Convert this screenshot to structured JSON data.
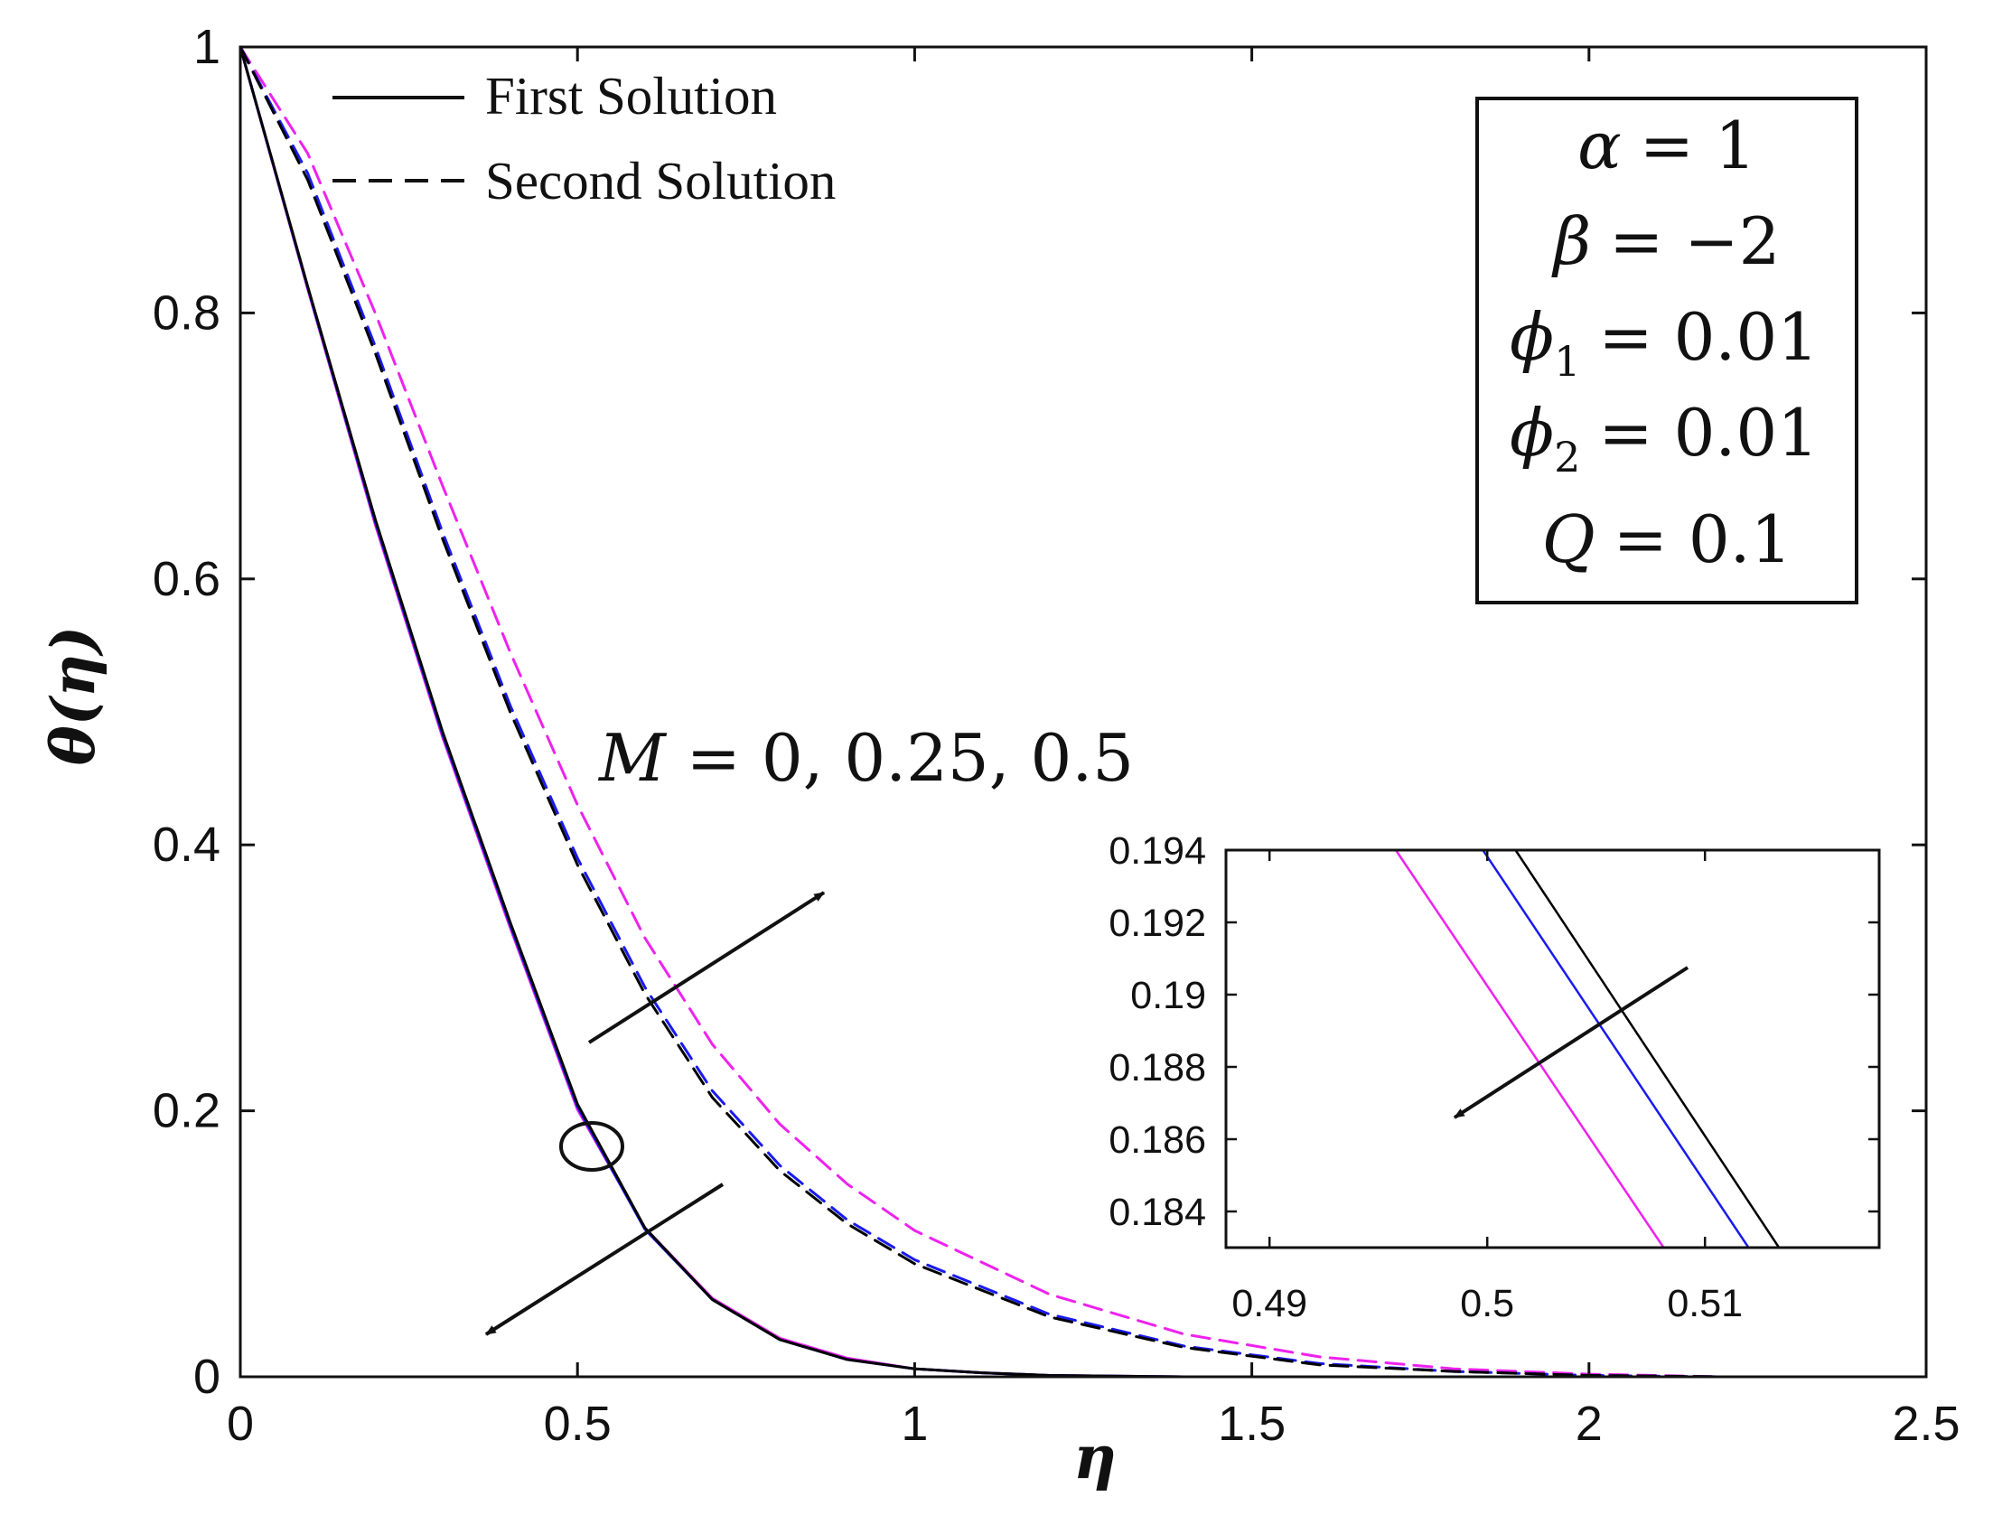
{
  "chart_data": [
    {
      "type": "line",
      "xlabel": "η",
      "ylabel": "θ(η)",
      "xlim": [
        0,
        2.5
      ],
      "ylim": [
        0,
        1
      ],
      "x_ticks": [
        "0",
        "0.5",
        "1",
        "1.5",
        "2",
        "2.5"
      ],
      "y_ticks": [
        "0",
        "0.2",
        "0.4",
        "0.6",
        "0.8",
        "1"
      ],
      "grid": false,
      "legend": {
        "placement": "top-left",
        "entries": [
          {
            "label": "First Solution",
            "style": "solid"
          },
          {
            "label": "Second Solution",
            "style": "dashed"
          }
        ]
      },
      "parameter_box": {
        "placement": "top-right",
        "lines": [
          {
            "symbol": "α",
            "subscript": "",
            "value": "= 1"
          },
          {
            "symbol": "β",
            "subscript": "",
            "value": "= −2"
          },
          {
            "symbol": "ϕ",
            "subscript": "1",
            "value": "= 0.01"
          },
          {
            "symbol": "ϕ",
            "subscript": "2",
            "value": "= 0.01"
          },
          {
            "symbol": "Q",
            "subscript": "",
            "value": "= 0.1"
          }
        ]
      },
      "annotation": {
        "symbol": "M",
        "text": " = 0, 0.25, 0.5"
      },
      "colors": {
        "M=0": "#000000",
        "M=0.25": "#1a1aee",
        "M=0.5": "#ee22ee",
        "axes": "#111111"
      },
      "series": [
        {
          "M": 0,
          "solution": "first",
          "color": "#000000",
          "style": "solid",
          "x": [
            0,
            0.1,
            0.2,
            0.3,
            0.4,
            0.5,
            0.6,
            0.7,
            0.8,
            0.9,
            1.0,
            1.1,
            1.2,
            1.4,
            1.6,
            2.0,
            2.5
          ],
          "y": [
            1.0,
            0.82,
            0.645,
            0.485,
            0.342,
            0.205,
            0.112,
            0.058,
            0.028,
            0.013,
            0.006,
            0.003,
            0.001,
            0.0,
            0.0,
            0.0,
            0.0
          ]
        },
        {
          "M": 0.25,
          "solution": "first",
          "color": "#1a1aee",
          "style": "solid",
          "x": [
            0,
            0.1,
            0.2,
            0.3,
            0.4,
            0.5,
            0.6,
            0.7,
            0.8,
            0.9,
            1.0,
            1.1,
            1.2,
            1.4,
            1.6,
            2.0,
            2.5
          ],
          "y": [
            1.0,
            0.819,
            0.643,
            0.483,
            0.34,
            0.203,
            0.111,
            0.058,
            0.028,
            0.013,
            0.006,
            0.003,
            0.001,
            0.0,
            0.0,
            0.0,
            0.0
          ]
        },
        {
          "M": 0.5,
          "solution": "first",
          "color": "#ee22ee",
          "style": "solid",
          "x": [
            0,
            0.1,
            0.2,
            0.3,
            0.4,
            0.5,
            0.6,
            0.7,
            0.8,
            0.9,
            1.0,
            1.1,
            1.2,
            1.4,
            1.6,
            2.0,
            2.5
          ],
          "y": [
            1.0,
            0.818,
            0.641,
            0.481,
            0.338,
            0.201,
            0.112,
            0.059,
            0.029,
            0.014,
            0.006,
            0.003,
            0.001,
            0.0,
            0.0,
            0.0,
            0.0
          ]
        },
        {
          "M": 0,
          "solution": "second",
          "color": "#000000",
          "style": "dashed",
          "x": [
            0,
            0.1,
            0.2,
            0.3,
            0.4,
            0.5,
            0.6,
            0.7,
            0.8,
            0.9,
            1.0,
            1.2,
            1.4,
            1.6,
            1.8,
            2.0,
            2.2,
            2.5
          ],
          "y": [
            1.0,
            0.9,
            0.77,
            0.63,
            0.5,
            0.385,
            0.288,
            0.21,
            0.155,
            0.115,
            0.085,
            0.045,
            0.022,
            0.009,
            0.004,
            0.001,
            0.0,
            0.0
          ]
        },
        {
          "M": 0.25,
          "solution": "second",
          "color": "#1a1aee",
          "style": "dashed",
          "x": [
            0,
            0.1,
            0.2,
            0.3,
            0.4,
            0.5,
            0.6,
            0.7,
            0.8,
            0.9,
            1.0,
            1.2,
            1.4,
            1.6,
            1.8,
            2.0,
            2.2,
            2.5
          ],
          "y": [
            1.0,
            0.905,
            0.775,
            0.635,
            0.505,
            0.39,
            0.293,
            0.215,
            0.159,
            0.118,
            0.088,
            0.047,
            0.023,
            0.01,
            0.004,
            0.001,
            0.0,
            0.0
          ]
        },
        {
          "M": 0.5,
          "solution": "second",
          "color": "#ee22ee",
          "style": "dashed",
          "x": [
            0,
            0.1,
            0.2,
            0.3,
            0.4,
            0.5,
            0.6,
            0.7,
            0.8,
            0.9,
            1.0,
            1.2,
            1.4,
            1.6,
            1.8,
            2.0,
            2.2,
            2.5
          ],
          "y": [
            1.0,
            0.92,
            0.8,
            0.67,
            0.545,
            0.43,
            0.33,
            0.25,
            0.19,
            0.145,
            0.11,
            0.062,
            0.032,
            0.015,
            0.006,
            0.002,
            0.0,
            0.0
          ]
        }
      ]
    },
    {
      "type": "line",
      "role": "inset-zoom",
      "xlim": [
        0.488,
        0.518
      ],
      "ylim": [
        0.183,
        0.194
      ],
      "x_ticks": [
        "0.49",
        "0.5",
        "0.51"
      ],
      "y_ticks": [
        "0.184",
        "0.186",
        "0.188",
        "0.19",
        "0.192",
        "0.194"
      ],
      "grid": false,
      "series": [
        {
          "M": 0,
          "color": "#000000",
          "x": [
            0.5013,
            0.5134
          ],
          "y": [
            0.194,
            0.183
          ]
        },
        {
          "M": 0.25,
          "color": "#1a1aee",
          "x": [
            0.4998,
            0.512
          ],
          "y": [
            0.194,
            0.183
          ]
        },
        {
          "M": 0.5,
          "color": "#ee22ee",
          "x": [
            0.4958,
            0.5081
          ],
          "y": [
            0.194,
            0.183
          ]
        }
      ]
    }
  ]
}
